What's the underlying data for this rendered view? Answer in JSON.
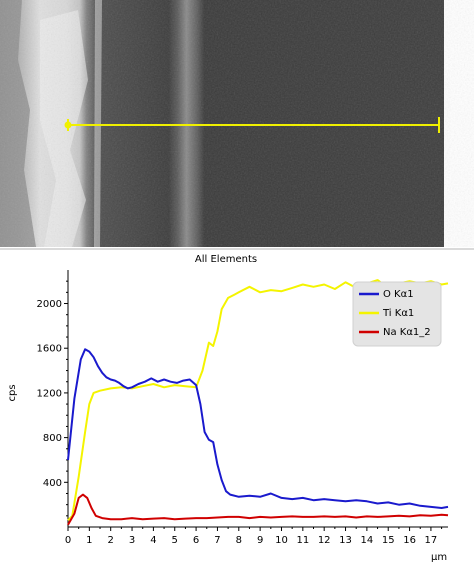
{
  "micrograph": {
    "description_free": true
  },
  "chart_data": {
    "type": "line",
    "title": "All Elements",
    "xlabel": "μm",
    "ylabel": "cps",
    "xlim": [
      0,
      17.8
    ],
    "ylim": [
      0,
      2300
    ],
    "x_ticks": [
      "0",
      "1",
      "2",
      "3",
      "4",
      "5",
      "6",
      "7",
      "8",
      "9",
      "10",
      "11",
      "12",
      "13",
      "14",
      "15",
      "16",
      "17"
    ],
    "y_ticks": [
      "400",
      "800",
      "1200",
      "1600",
      "2000"
    ],
    "legend_position": "top-right",
    "series": [
      {
        "name": "O Kα1",
        "color": "#1a1acd",
        "points": [
          [
            0,
            600
          ],
          [
            0.3,
            1150
          ],
          [
            0.6,
            1500
          ],
          [
            0.8,
            1590
          ],
          [
            1.0,
            1570
          ],
          [
            1.2,
            1520
          ],
          [
            1.4,
            1440
          ],
          [
            1.6,
            1380
          ],
          [
            1.8,
            1340
          ],
          [
            2.0,
            1320
          ],
          [
            2.2,
            1310
          ],
          [
            2.4,
            1290
          ],
          [
            2.6,
            1260
          ],
          [
            2.8,
            1240
          ],
          [
            3.0,
            1250
          ],
          [
            3.3,
            1280
          ],
          [
            3.6,
            1300
          ],
          [
            3.9,
            1330
          ],
          [
            4.2,
            1300
          ],
          [
            4.5,
            1320
          ],
          [
            4.8,
            1300
          ],
          [
            5.1,
            1290
          ],
          [
            5.4,
            1310
          ],
          [
            5.7,
            1320
          ],
          [
            6.0,
            1270
          ],
          [
            6.2,
            1100
          ],
          [
            6.4,
            850
          ],
          [
            6.6,
            780
          ],
          [
            6.8,
            760
          ],
          [
            7.0,
            560
          ],
          [
            7.2,
            420
          ],
          [
            7.4,
            320
          ],
          [
            7.6,
            290
          ],
          [
            8.0,
            270
          ],
          [
            8.5,
            280
          ],
          [
            9.0,
            270
          ],
          [
            9.5,
            300
          ],
          [
            10.0,
            260
          ],
          [
            10.5,
            250
          ],
          [
            11.0,
            260
          ],
          [
            11.5,
            240
          ],
          [
            12.0,
            250
          ],
          [
            12.5,
            240
          ],
          [
            13.0,
            230
          ],
          [
            13.5,
            240
          ],
          [
            14.0,
            230
          ],
          [
            14.5,
            210
          ],
          [
            15.0,
            220
          ],
          [
            15.5,
            200
          ],
          [
            16.0,
            210
          ],
          [
            16.5,
            190
          ],
          [
            17.0,
            180
          ],
          [
            17.5,
            170
          ],
          [
            17.8,
            180
          ]
        ]
      },
      {
        "name": "Ti Kα1",
        "color": "#f4f400",
        "points": [
          [
            0,
            60
          ],
          [
            0.2,
            100
          ],
          [
            0.5,
            450
          ],
          [
            0.8,
            850
          ],
          [
            1.0,
            1100
          ],
          [
            1.2,
            1200
          ],
          [
            1.5,
            1220
          ],
          [
            2.0,
            1240
          ],
          [
            2.5,
            1250
          ],
          [
            3.0,
            1240
          ],
          [
            3.5,
            1260
          ],
          [
            4.0,
            1280
          ],
          [
            4.5,
            1250
          ],
          [
            5.0,
            1270
          ],
          [
            5.5,
            1260
          ],
          [
            6.0,
            1250
          ],
          [
            6.3,
            1400
          ],
          [
            6.6,
            1650
          ],
          [
            6.8,
            1620
          ],
          [
            7.0,
            1750
          ],
          [
            7.2,
            1950
          ],
          [
            7.5,
            2050
          ],
          [
            7.8,
            2080
          ],
          [
            8.0,
            2100
          ],
          [
            8.5,
            2150
          ],
          [
            9.0,
            2100
          ],
          [
            9.5,
            2120
          ],
          [
            10.0,
            2110
          ],
          [
            10.5,
            2140
          ],
          [
            11.0,
            2170
          ],
          [
            11.5,
            2150
          ],
          [
            12.0,
            2170
          ],
          [
            12.5,
            2130
          ],
          [
            13.0,
            2190
          ],
          [
            13.5,
            2140
          ],
          [
            14.0,
            2180
          ],
          [
            14.5,
            2210
          ],
          [
            15.0,
            2140
          ],
          [
            15.5,
            2180
          ],
          [
            16.0,
            2200
          ],
          [
            16.5,
            2180
          ],
          [
            17.0,
            2200
          ],
          [
            17.5,
            2170
          ],
          [
            17.8,
            2180
          ]
        ]
      },
      {
        "name": "Na Kα1_2",
        "color": "#d00000",
        "points": [
          [
            0,
            20
          ],
          [
            0.3,
            120
          ],
          [
            0.5,
            260
          ],
          [
            0.7,
            290
          ],
          [
            0.9,
            260
          ],
          [
            1.1,
            170
          ],
          [
            1.3,
            100
          ],
          [
            1.6,
            80
          ],
          [
            2.0,
            70
          ],
          [
            2.5,
            70
          ],
          [
            3.0,
            80
          ],
          [
            3.5,
            70
          ],
          [
            4.0,
            75
          ],
          [
            4.5,
            80
          ],
          [
            5.0,
            70
          ],
          [
            5.5,
            75
          ],
          [
            6.0,
            80
          ],
          [
            6.5,
            80
          ],
          [
            7.0,
            85
          ],
          [
            7.5,
            90
          ],
          [
            8.0,
            90
          ],
          [
            8.5,
            80
          ],
          [
            9.0,
            90
          ],
          [
            9.5,
            85
          ],
          [
            10.0,
            90
          ],
          [
            10.5,
            95
          ],
          [
            11.0,
            90
          ],
          [
            11.5,
            90
          ],
          [
            12.0,
            95
          ],
          [
            12.5,
            90
          ],
          [
            13.0,
            95
          ],
          [
            13.5,
            85
          ],
          [
            14.0,
            95
          ],
          [
            14.5,
            90
          ],
          [
            15.0,
            95
          ],
          [
            15.5,
            100
          ],
          [
            16.0,
            95
          ],
          [
            16.5,
            105
          ],
          [
            17.0,
            100
          ],
          [
            17.5,
            110
          ],
          [
            17.8,
            105
          ]
        ]
      }
    ]
  }
}
